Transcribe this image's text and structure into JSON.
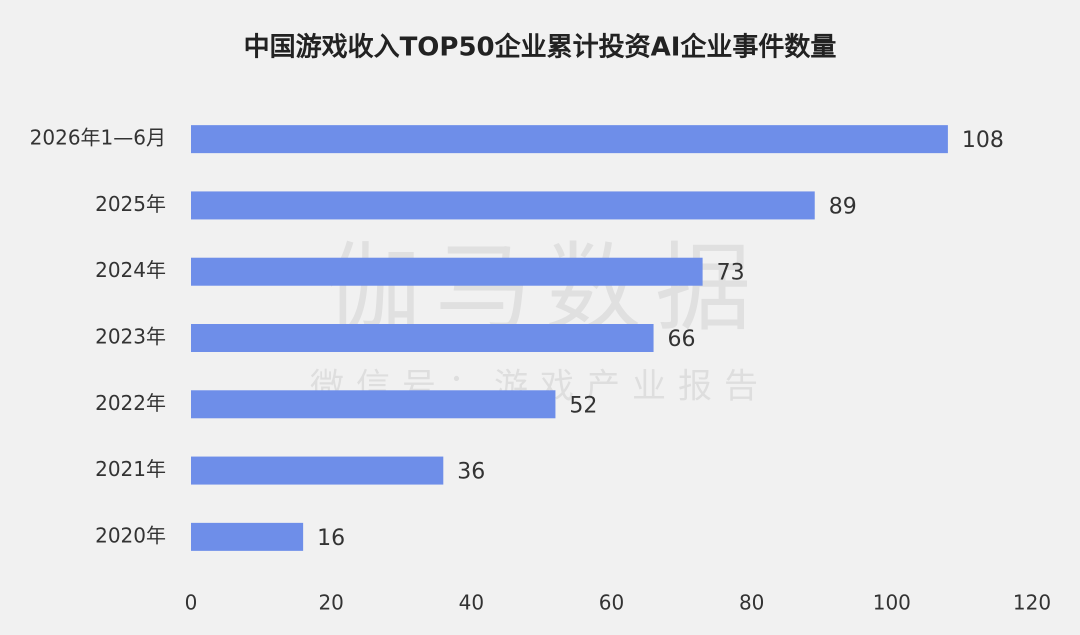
{
  "chart_data": {
    "type": "bar",
    "orientation": "horizontal",
    "title": "中国游戏收入TOP50企业累计投资AI企业事件数量",
    "watermark": "伽马数据",
    "watermark_subtitle": "微信号：游戏产业报告",
    "categories": [
      "2026年1—6月",
      "2025年",
      "2024年",
      "2023年",
      "2022年",
      "2021年",
      "2020年"
    ],
    "values": [
      108,
      89,
      73,
      66,
      52,
      36,
      16
    ],
    "color": "#6e8ee9",
    "xlim": [
      0,
      120
    ],
    "xticks": [
      0,
      20,
      40,
      60,
      80,
      100,
      120
    ],
    "grid": false
  }
}
